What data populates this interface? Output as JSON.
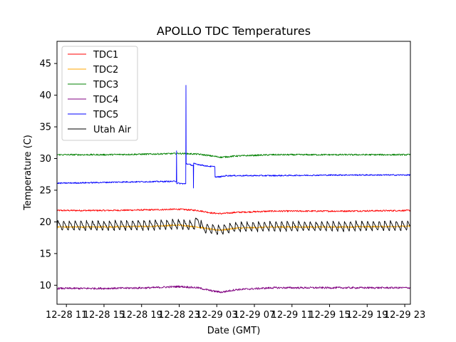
{
  "chart_data": {
    "type": "line",
    "title": "APOLLO TDC Temperatures",
    "xlabel": "Date (GMT)",
    "ylabel": "Temperature (C)",
    "xlim": [
      10,
      47.6
    ],
    "ylim": [
      7,
      48.5
    ],
    "grid": false,
    "legend_position": "top-left",
    "x_units": "hours since 12-28 00",
    "x_ticks": [
      {
        "x": 11,
        "label": "12-28 11"
      },
      {
        "x": 15,
        "label": "12-28 15"
      },
      {
        "x": 19,
        "label": "12-28 19"
      },
      {
        "x": 23,
        "label": "12-28 23"
      },
      {
        "x": 27,
        "label": "12-29 03"
      },
      {
        "x": 31,
        "label": "12-29 07"
      },
      {
        "x": 35,
        "label": "12-29 11"
      },
      {
        "x": 39,
        "label": "12-29 15"
      },
      {
        "x": 43,
        "label": "12-29 19"
      },
      {
        "x": 47,
        "label": "12-29 23"
      }
    ],
    "y_ticks": [
      10,
      15,
      20,
      25,
      30,
      35,
      40,
      45
    ],
    "series": [
      {
        "name": "TDC1",
        "color": "#ff0000",
        "noise": 0.12,
        "points": [
          [
            10,
            21.8
          ],
          [
            15,
            21.8
          ],
          [
            20,
            21.9
          ],
          [
            23,
            22.0
          ],
          [
            25,
            21.8
          ],
          [
            26.5,
            21.4
          ],
          [
            27.5,
            21.3
          ],
          [
            29,
            21.5
          ],
          [
            33,
            21.7
          ],
          [
            40,
            21.7
          ],
          [
            47.6,
            21.8
          ]
        ]
      },
      {
        "name": "TDC2",
        "color": "#ffa500",
        "noise": 0.12,
        "points": [
          [
            10,
            19.2
          ],
          [
            15,
            19.2
          ],
          [
            20,
            19.3
          ],
          [
            23,
            19.5
          ],
          [
            25,
            19.2
          ],
          [
            26.5,
            18.8
          ],
          [
            27.5,
            18.7
          ],
          [
            29,
            19.0
          ],
          [
            33,
            19.2
          ],
          [
            40,
            19.2
          ],
          [
            47.6,
            19.3
          ]
        ]
      },
      {
        "name": "TDC3",
        "color": "#008000",
        "noise": 0.12,
        "points": [
          [
            10,
            30.6
          ],
          [
            15,
            30.6
          ],
          [
            20,
            30.7
          ],
          [
            23,
            30.8
          ],
          [
            25,
            30.7
          ],
          [
            26.5,
            30.4
          ],
          [
            27.5,
            30.2
          ],
          [
            29,
            30.4
          ],
          [
            33,
            30.6
          ],
          [
            40,
            30.6
          ],
          [
            47.6,
            30.6
          ]
        ]
      },
      {
        "name": "TDC4",
        "color": "#800080",
        "noise": 0.15,
        "points": [
          [
            10,
            9.5
          ],
          [
            15,
            9.5
          ],
          [
            20,
            9.6
          ],
          [
            23,
            9.8
          ],
          [
            25,
            9.6
          ],
          [
            26.5,
            9.1
          ],
          [
            27.5,
            8.9
          ],
          [
            29,
            9.3
          ],
          [
            33,
            9.6
          ],
          [
            40,
            9.6
          ],
          [
            47.6,
            9.6
          ]
        ]
      },
      {
        "name": "TDC5",
        "color": "#0000ff",
        "noise": 0.1,
        "points": [
          [
            10,
            26.1
          ],
          [
            14,
            26.2
          ],
          [
            17,
            26.3
          ],
          [
            22.7,
            26.4
          ],
          [
            22.72,
            31.2
          ],
          [
            22.74,
            26.1
          ],
          [
            23.7,
            26.0
          ],
          [
            23.72,
            41.6
          ],
          [
            23.74,
            29.2
          ],
          [
            24.5,
            28.9
          ],
          [
            24.52,
            25.3
          ],
          [
            24.54,
            29.2
          ],
          [
            26.0,
            28.8
          ],
          [
            26.8,
            28.7
          ],
          [
            26.82,
            27.1
          ],
          [
            27.3,
            27.1
          ],
          [
            28,
            27.3
          ],
          [
            33,
            27.3
          ],
          [
            40,
            27.4
          ],
          [
            47.6,
            27.4
          ]
        ]
      },
      {
        "name": "Utah Air",
        "color": "#000000",
        "noise": 0.1,
        "cycle_hours": 0.61,
        "cycle_amplitude": 1.6,
        "points": [
          [
            10,
            19.4
          ],
          [
            15,
            19.4
          ],
          [
            20,
            19.5
          ],
          [
            23,
            19.6
          ],
          [
            24.5,
            19.4
          ],
          [
            25,
            20.4
          ],
          [
            25.5,
            19.0
          ],
          [
            26.5,
            18.9
          ],
          [
            27.3,
            18.7
          ],
          [
            29,
            19.2
          ],
          [
            33,
            19.3
          ],
          [
            40,
            19.3
          ],
          [
            47.6,
            19.4
          ]
        ]
      }
    ]
  }
}
